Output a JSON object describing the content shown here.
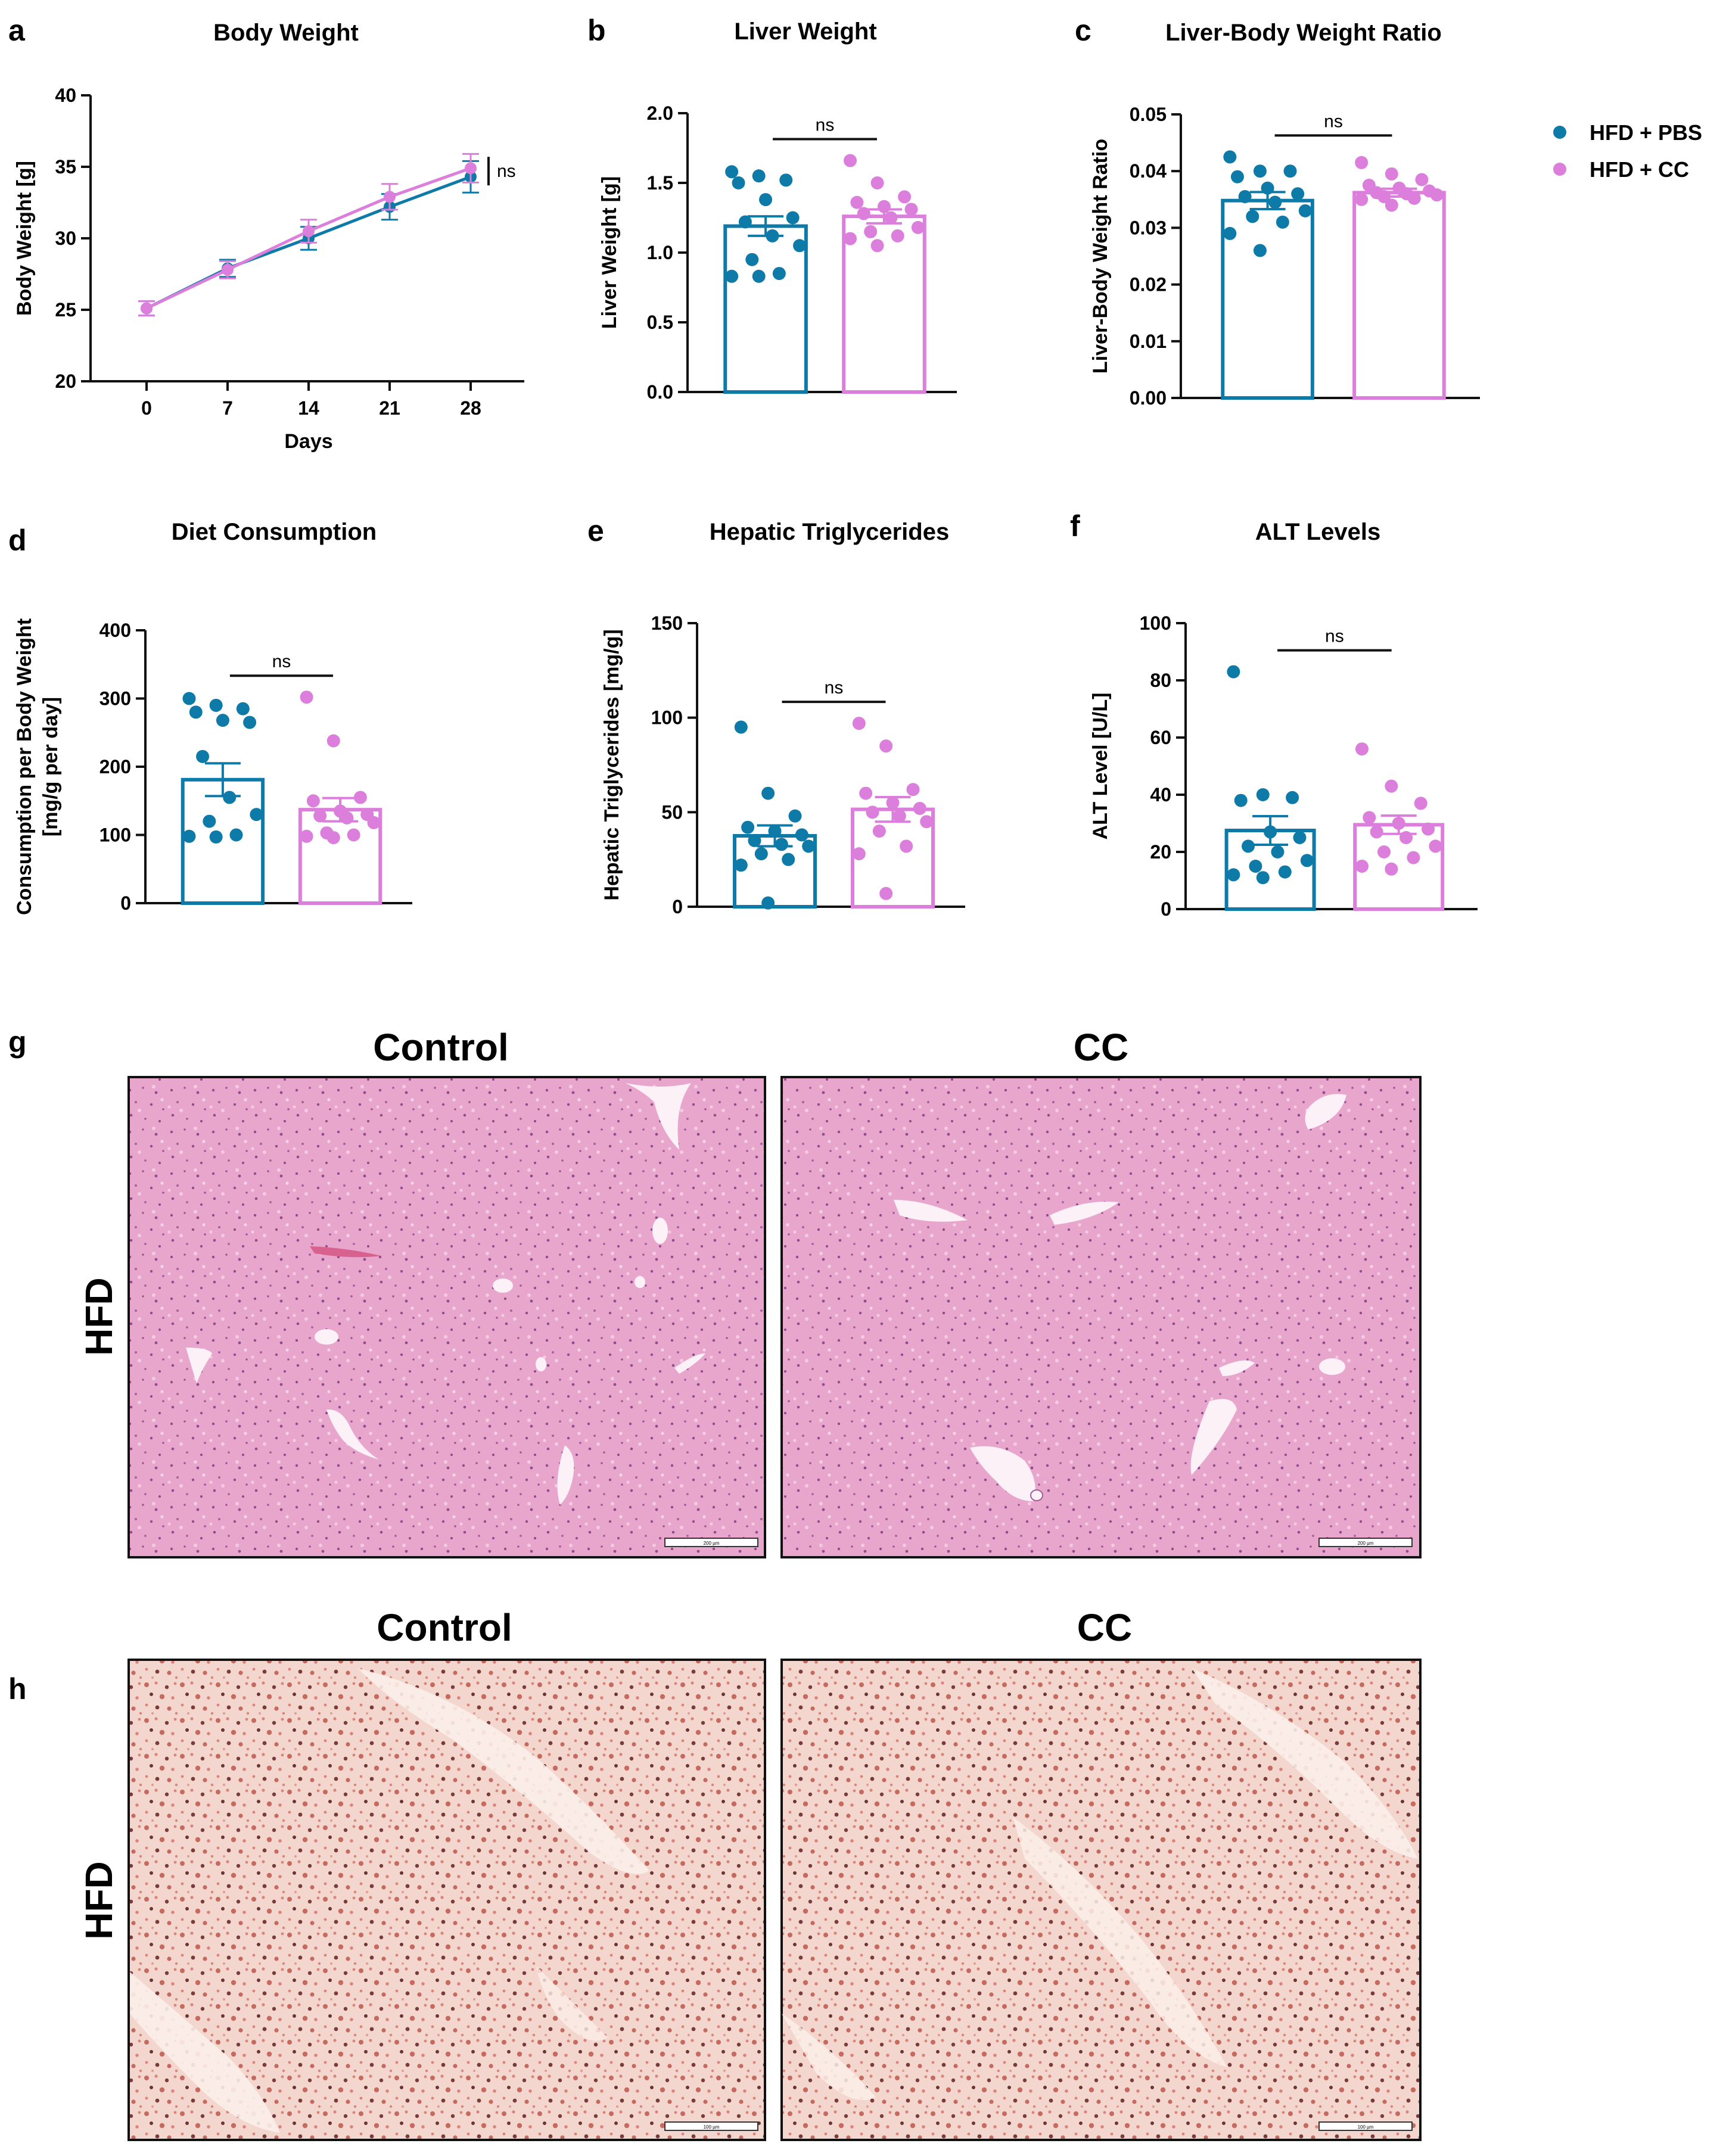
{
  "colors": {
    "pbs": "#0e7aa8",
    "cc": "#dc7edb",
    "he_bg": "#e8a3cb",
    "oro_bg": "#f2d3cb"
  },
  "legend": {
    "items": [
      "HFD + PBS",
      "HFD + CC"
    ]
  },
  "chart_data": [
    {
      "panel": "a",
      "type": "line",
      "title": "Body Weight",
      "xlabel": "Days",
      "ylabel": "Body Weight [g]",
      "x": [
        0,
        7,
        14,
        21,
        28
      ],
      "ylim": [
        20,
        40
      ],
      "yticks": [
        20,
        25,
        30,
        35,
        40
      ],
      "series": [
        {
          "name": "HFD + PBS",
          "values": [
            25.1,
            27.9,
            30.0,
            32.2,
            34.3
          ],
          "err": [
            0.5,
            0.6,
            0.8,
            0.9,
            1.1
          ]
        },
        {
          "name": "HFD + CC",
          "values": [
            25.1,
            27.8,
            30.5,
            32.9,
            34.9
          ],
          "err": [
            0.5,
            0.6,
            0.8,
            0.9,
            1.0
          ]
        }
      ],
      "significance": "ns"
    },
    {
      "panel": "b",
      "type": "bar",
      "title": "Liver Weight",
      "ylabel": "Liver Weight [g]",
      "ylim": [
        0,
        2.0
      ],
      "yticks": [
        "0.0",
        "0.5",
        "1.0",
        "1.5",
        "2.0"
      ],
      "categories": [
        "HFD + PBS",
        "HFD + CC"
      ],
      "values": [
        1.19,
        1.26
      ],
      "err": [
        0.07,
        0.05
      ],
      "points": [
        [
          1.58,
          1.55,
          1.52,
          1.5,
          1.38,
          1.25,
          1.22,
          1.12,
          1.05,
          0.95,
          0.85,
          0.83,
          0.83
        ],
        [
          1.66,
          1.5,
          1.4,
          1.36,
          1.33,
          1.31,
          1.28,
          1.25,
          1.18,
          1.15,
          1.12,
          1.1,
          1.05
        ]
      ],
      "significance": "ns"
    },
    {
      "panel": "c",
      "type": "bar",
      "title": "Liver-Body Weight Ratio",
      "ylabel": "Liver-Body Weight Ratio",
      "ylim": [
        0,
        0.05
      ],
      "yticks": [
        "0.00",
        "0.01",
        "0.02",
        "0.03",
        "0.04",
        "0.05"
      ],
      "categories": [
        "HFD + PBS",
        "HFD + CC"
      ],
      "values": [
        0.0348,
        0.0362
      ],
      "err": [
        0.0015,
        0.0007
      ],
      "points": [
        [
          0.0425,
          0.04,
          0.04,
          0.039,
          0.037,
          0.036,
          0.0355,
          0.0345,
          0.033,
          0.032,
          0.031,
          0.029,
          0.026
        ],
        [
          0.0415,
          0.0395,
          0.0385,
          0.0375,
          0.037,
          0.0365,
          0.0362,
          0.036,
          0.0358,
          0.0355,
          0.0352,
          0.035,
          0.034
        ]
      ],
      "significance": "ns"
    },
    {
      "panel": "d",
      "type": "bar",
      "title": "Diet Consumption",
      "ylabel": [
        "Consumption per Body Weight",
        "[mg/g per day]"
      ],
      "ylim": [
        0,
        400
      ],
      "yticks": [
        "0",
        "100",
        "200",
        "300",
        "400"
      ],
      "categories": [
        "HFD + PBS",
        "HFD + CC"
      ],
      "values": [
        181,
        137
      ],
      "err": [
        24,
        17
      ],
      "points": [
        [
          300,
          290,
          285,
          280,
          268,
          265,
          215,
          155,
          130,
          120,
          100,
          98,
          97
        ],
        [
          302,
          238,
          155,
          150,
          135,
          130,
          128,
          125,
          118,
          103,
          100,
          98,
          96
        ]
      ],
      "significance": "ns"
    },
    {
      "panel": "e",
      "type": "bar",
      "title": "Hepatic Triglycerides",
      "ylabel": "Hepatic Triglycerides [mg/g]",
      "ylim": [
        0,
        150
      ],
      "yticks": [
        "0",
        "50",
        "100",
        "150"
      ],
      "categories": [
        "HFD + PBS",
        "HFD + CC"
      ],
      "values": [
        37.5,
        51.5
      ],
      "err": [
        5.5,
        6.5
      ],
      "points": [
        [
          95,
          60,
          48,
          42,
          40,
          38,
          35,
          33,
          32,
          28,
          25,
          22,
          2
        ],
        [
          97,
          85,
          62,
          60,
          55,
          52,
          50,
          48,
          45,
          40,
          32,
          28,
          7
        ]
      ],
      "significance": "ns"
    },
    {
      "panel": "f",
      "type": "bar",
      "title": "ALT Levels",
      "ylabel": "ALT Level [U/L]",
      "ylim": [
        0,
        100
      ],
      "yticks": [
        "0",
        "20",
        "40",
        "60",
        "80",
        "100"
      ],
      "categories": [
        "HFD + PBS",
        "HFD + CC"
      ],
      "values": [
        27.5,
        29.5
      ],
      "err": [
        5.0,
        3.2
      ],
      "points": [
        [
          83,
          40,
          39,
          38,
          27,
          25,
          22,
          20,
          17,
          15,
          13,
          12,
          11
        ],
        [
          56,
          43,
          37,
          32,
          30,
          28,
          27,
          25,
          22,
          20,
          18,
          15,
          14
        ]
      ],
      "significance": "ns"
    }
  ],
  "histology": {
    "g": {
      "letter": "g",
      "columns": [
        "Control",
        "CC"
      ],
      "row": "HFD",
      "scale_bar": "200 µm"
    },
    "h": {
      "letter": "h",
      "columns": [
        "Control",
        "CC"
      ],
      "row": "HFD",
      "scale_bar": "100 µm"
    }
  }
}
